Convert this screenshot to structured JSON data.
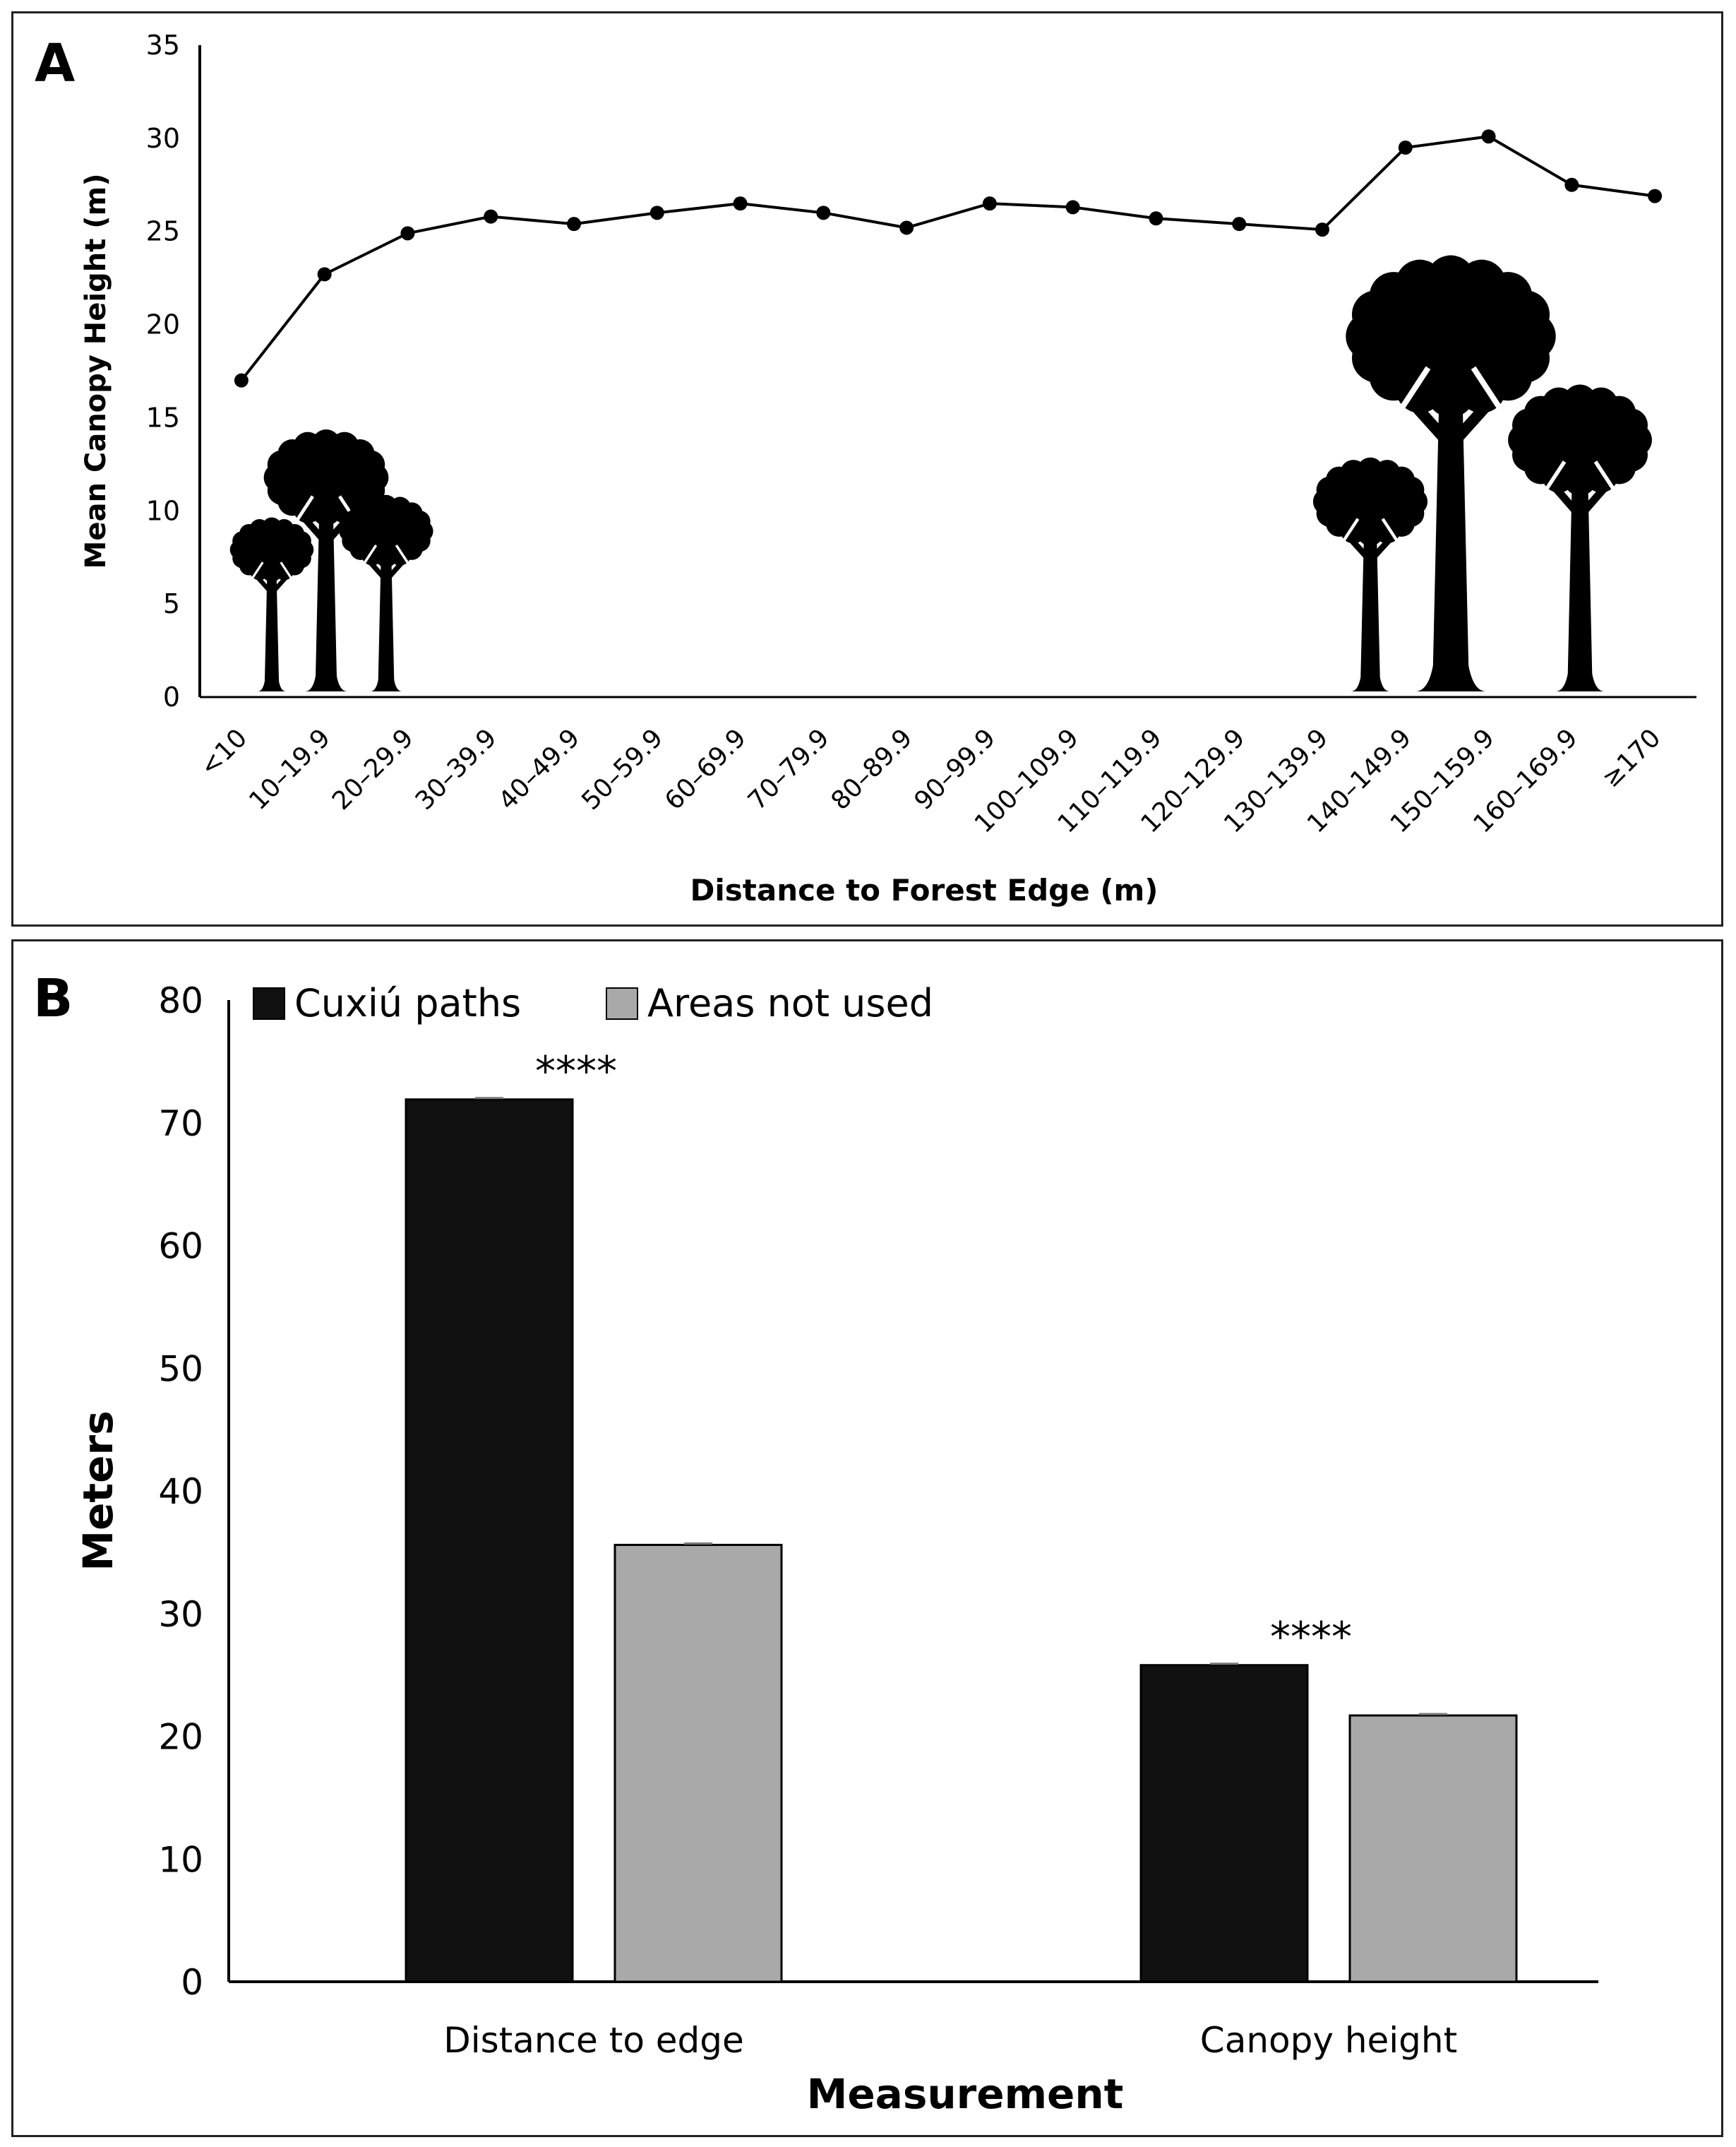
{
  "panel_a": {
    "letter": "A",
    "tree_icon": "tree-silhouette-icon"
  },
  "panel_b": {
    "letter": "B"
  },
  "chart_data": [
    {
      "type": "line",
      "title": "",
      "xlabel": "Distance to Forest Edge (m)",
      "ylabel": "Mean Canopy Height (m)",
      "ylim": [
        0,
        35
      ],
      "yticks": [
        0,
        5,
        10,
        15,
        20,
        25,
        30,
        35
      ],
      "categories": [
        "<10",
        "10–19.9",
        "20–29.9",
        "30–39.9",
        "40–49.9",
        "50–59.9",
        "60–69.9",
        "70–79.9",
        "80–89.9",
        "90–99.9",
        "100–109.9",
        "110–119.9",
        "120–129.9",
        "130–139.9",
        "140–149.9",
        "150–159.9",
        "160–169.9",
        "≥170"
      ],
      "series": [
        {
          "name": "Mean canopy height",
          "values": [
            17.0,
            22.7,
            24.9,
            25.8,
            25.4,
            26.0,
            26.5,
            26.0,
            25.2,
            26.5,
            26.3,
            25.7,
            25.4,
            25.1,
            29.5,
            30.1,
            27.5,
            26.9
          ]
        }
      ],
      "grid": false,
      "legend": "none"
    },
    {
      "type": "bar",
      "title": "",
      "xlabel": "Measurement",
      "ylabel": "Meters",
      "ylim": [
        0,
        80
      ],
      "yticks": [
        0,
        10,
        20,
        30,
        40,
        50,
        60,
        70,
        80
      ],
      "categories": [
        "Distance to edge",
        "Canopy height"
      ],
      "series": [
        {
          "name": "Cuxiú paths",
          "color": "#111111",
          "values": [
            71.9,
            25.8
          ]
        },
        {
          "name": "Areas not used",
          "color": "#a9a9a9",
          "values": [
            35.6,
            21.7
          ]
        }
      ],
      "annotations": [
        "****",
        "****"
      ],
      "grid": false,
      "legend": "top-left"
    }
  ]
}
